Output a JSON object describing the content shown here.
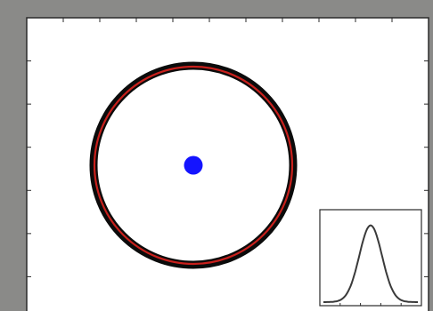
{
  "figure": {
    "colors": {
      "background": "#8a8a88",
      "panel": "#ffffff",
      "frame": "#2a2a2a",
      "ring_outer": "#0b0b0b",
      "ring_inner": "#c8201c",
      "center_dot": "#1414ff",
      "inset_curve": "#3a3a3a"
    },
    "ring": {
      "shape": "circle",
      "style": "double-stroke"
    },
    "center_point": {
      "shape": "dot"
    },
    "inset": {
      "curve": "gaussian",
      "sigma": 0.12,
      "mean": 0.5
    },
    "ticks": {
      "top": 11,
      "left": 7,
      "right": 7
    }
  }
}
